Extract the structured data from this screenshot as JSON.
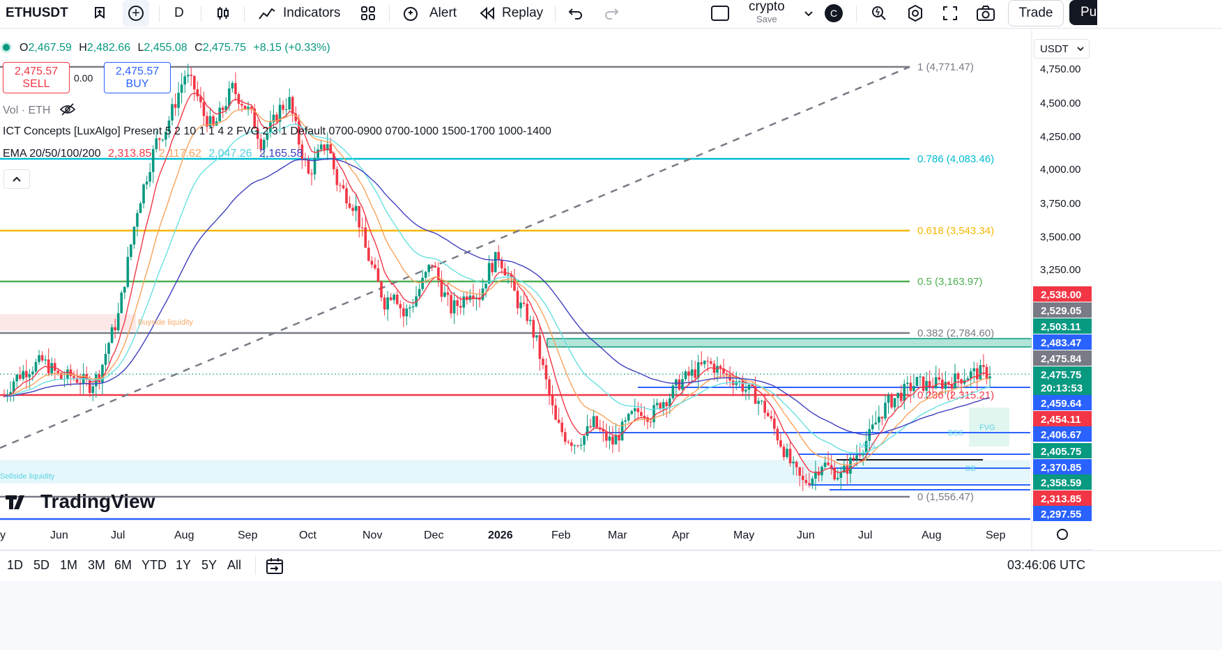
{
  "toolbar": {
    "symbol": "ETHUSDT",
    "interval": "D",
    "indicators": "Indicators",
    "alert": "Alert",
    "replay": "Replay",
    "layout_name": "crypto",
    "layout_status": "Save",
    "avatar_letter": "C",
    "trade": "Trade",
    "publish": "Pu"
  },
  "legend": {
    "o_label": "O",
    "o": "2,467.59",
    "h_label": "H",
    "h": "2,482.66",
    "l_label": "L",
    "l": "2,455.08",
    "c_label": "C",
    "c": "2,475.75",
    "change": "+8.15 (+0.33%)",
    "sell_price": "2,475.57",
    "sell_label": "SELL",
    "spread": "0.00",
    "buy_price": "2,475.57",
    "buy_label": "BUY",
    "vol": "Vol · ETH",
    "ict": "ICT Concepts [LuxAlgo] Present 5 2 10 1 1 4 2 FVG 2 3 1 Default 0700-0900 0700-1000 1500-1700 1000-1400",
    "ema_label": "EMA 20/50/100/200",
    "ema20": "2,313.85",
    "ema50": "2,117.62",
    "ema100": "2,047.26",
    "ema200": "2,165.58"
  },
  "currency": "USDT",
  "colors": {
    "up": "#089981",
    "down": "#f23645",
    "ema20": "#f23645",
    "ema50": "#f7a35c",
    "ema100": "#66e0e0",
    "ema200": "#3f3fbf",
    "fib_1": "#787b86",
    "fib_786": "#00bcd4",
    "fib_618": "#f5b800",
    "fib_5": "#4caf50",
    "fib_382": "#787b86",
    "fib_236": "#f23645",
    "fib_0": "#787b86"
  },
  "chart_data": {
    "type": "candlestick",
    "y_axis_ticks": [
      "4,750.00",
      "4,500.00",
      "4,250.00",
      "4,000.00",
      "3,750.00",
      "3,500.00",
      "3,250.00"
    ],
    "x_axis_labels": [
      "y",
      "Jun",
      "Jul",
      "Aug",
      "Sep",
      "Oct",
      "Nov",
      "Dec",
      "2026",
      "Feb",
      "Mar",
      "Apr",
      "May",
      "Jun",
      "Jul",
      "Aug",
      "Sep"
    ],
    "fib_levels": [
      {
        "label": "1 (4,771.47)",
        "value": 4771.47
      },
      {
        "label": "0.786 (4,083.46)",
        "value": 4083.46
      },
      {
        "label": "0.618 (3,543.34)",
        "value": 3543.34
      },
      {
        "label": "0.5 (3,163.97)",
        "value": 3163.97
      },
      {
        "label": "0.382 (2,784.60)",
        "value": 2784.6
      },
      {
        "label": "0.236 (2,315.21)",
        "value": 2315.21
      },
      {
        "label": "0 (1,556.47)",
        "value": 1556.47
      }
    ],
    "price_tags": [
      {
        "text": "2,538.00",
        "color": "#f23645"
      },
      {
        "text": "2,529.05",
        "color": "#787b86"
      },
      {
        "text": "2,503.11",
        "color": "#089981"
      },
      {
        "text": "2,483.47",
        "color": "#2962ff"
      },
      {
        "text": "2,475.84",
        "color": "#787b86"
      },
      {
        "text": "2,475.75",
        "color": "#089981"
      },
      {
        "text": "20:13:53",
        "color": "#089981"
      },
      {
        "text": "2,459.64",
        "color": "#2962ff"
      },
      {
        "text": "2,454.11",
        "color": "#f23645"
      },
      {
        "text": "2,406.67",
        "color": "#2962ff"
      },
      {
        "text": "2,405.75",
        "color": "#089981"
      },
      {
        "text": "2,370.85",
        "color": "#2962ff"
      },
      {
        "text": "2,358.59",
        "color": "#089981"
      },
      {
        "text": "2,313.85",
        "color": "#f23645"
      },
      {
        "text": "2,297.55",
        "color": "#2962ff"
      }
    ],
    "annotations": [
      "Buyside liquidity",
      "Sellside liquidity",
      "MSS",
      "OB",
      "FVG",
      "BSS"
    ],
    "watermark": "TradingView",
    "candles_close_path": [
      2300,
      2420,
      2480,
      2520,
      2560,
      2500,
      2430,
      2450,
      2420,
      2380,
      2460,
      2700,
      2900,
      3300,
      3700,
      3950,
      4200,
      4300,
      4500,
      4700,
      4600,
      4400,
      4300,
      4450,
      4600,
      4500,
      4400,
      4200,
      4300,
      4450,
      4500,
      4200,
      3950,
      4100,
      4200,
      3900,
      3800,
      3700,
      3400,
      3200,
      3000,
      3100,
      2900,
      3000,
      3150,
      3300,
      3100,
      2950,
      3000,
      3100,
      3050,
      3250,
      3350,
      3200,
      3000,
      2900,
      2700,
      2400,
      2100,
      2000,
      1950,
      2000,
      2100,
      2000,
      1950,
      2050,
      2150,
      2200,
      2150,
      2250,
      2300,
      2400,
      2450,
      2500,
      2550,
      2500,
      2450,
      2420,
      2350,
      2300,
      2200,
      2050,
      1900,
      1750,
      1650,
      1700,
      1800,
      1750,
      1700,
      1800,
      1900,
      2000,
      2150,
      2250,
      2300,
      2350,
      2400,
      2380,
      2390,
      2400,
      2420,
      2450,
      2470,
      2475
    ]
  },
  "timeframes": [
    "1D",
    "5D",
    "1M",
    "3M",
    "6M",
    "YTD",
    "1Y",
    "5Y",
    "All"
  ],
  "clock": "03:46:06 UTC"
}
